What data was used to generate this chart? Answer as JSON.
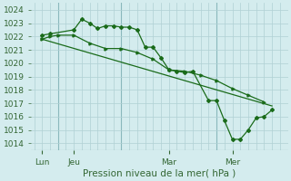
{
  "background_color": "#d4ecee",
  "grid_color": "#b0d0d4",
  "line_color": "#1a6b1a",
  "label_color": "#336633",
  "xlabel": "Pression niveau de la mer( hPa )",
  "ylim": [
    1013.5,
    1024.5
  ],
  "xlim": [
    -0.2,
    16.0
  ],
  "yticks": [
    1014,
    1015,
    1016,
    1017,
    1018,
    1019,
    1020,
    1021,
    1022,
    1023,
    1024
  ],
  "xtick_labels": [
    "Lun",
    "Jeu",
    "Mar",
    "Mer"
  ],
  "xtick_positions": [
    0.5,
    2.5,
    8.5,
    12.5
  ],
  "vline_positions": [
    1.5,
    5.5,
    11.5
  ],
  "series1_x": [
    0.5,
    1.0,
    2.5,
    3.0,
    3.5,
    4.0,
    4.5,
    5.0,
    5.5,
    6.0,
    6.5,
    7.0,
    7.5,
    8.0,
    8.5,
    9.0,
    9.5,
    10.0,
    11.0,
    11.5,
    12.0,
    12.5,
    13.0,
    13.5,
    14.0,
    14.5,
    15.0
  ],
  "series1_y": [
    1022.1,
    1022.2,
    1022.5,
    1023.3,
    1023.0,
    1022.6,
    1022.8,
    1022.8,
    1022.7,
    1022.7,
    1022.5,
    1021.2,
    1021.2,
    1020.4,
    1019.5,
    1019.4,
    1019.3,
    1019.4,
    1017.2,
    1017.2,
    1015.7,
    1014.3,
    1014.3,
    1015.0,
    1015.9,
    1016.0,
    1016.5
  ],
  "series2_x": [
    0.5,
    1.0,
    1.5,
    2.5,
    3.5,
    4.5,
    5.5,
    6.5,
    7.5,
    8.5,
    9.5,
    10.5,
    11.5,
    12.5,
    13.5,
    14.5
  ],
  "series2_y": [
    1021.8,
    1022.0,
    1022.1,
    1022.1,
    1021.5,
    1021.1,
    1021.1,
    1020.8,
    1020.3,
    1019.5,
    1019.4,
    1019.1,
    1018.7,
    1018.1,
    1017.6,
    1017.1
  ],
  "series3_x": [
    0.5,
    15.0
  ],
  "series3_y": [
    1021.8,
    1016.8
  ]
}
